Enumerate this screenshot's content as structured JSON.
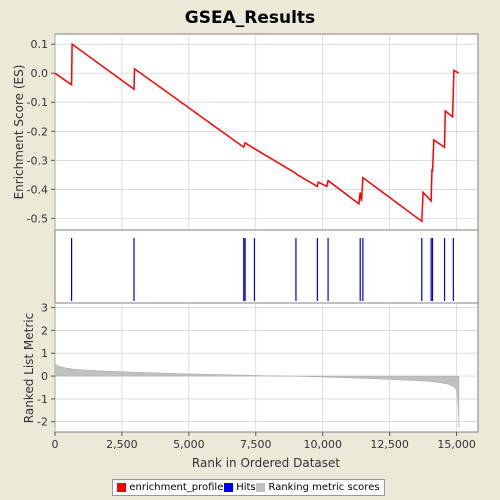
{
  "chart_data": {
    "type": "line",
    "title": "GSEA_Results",
    "xlabel": "Rank in Ordered Dataset",
    "xlim": [
      0,
      15800
    ],
    "x_ticks": [
      0,
      2500,
      5000,
      7500,
      10000,
      12500,
      15000
    ],
    "x_tick_labels": [
      "0",
      "2,500",
      "5,000",
      "7,500",
      "10,000",
      "12,500",
      "15,000"
    ],
    "es_panel": {
      "ylabel": "Enrichment Score (ES)",
      "ylim": [
        -0.54,
        0.135
      ],
      "y_ticks": [
        0.1,
        0.0,
        -0.1,
        -0.2,
        -0.3,
        -0.4,
        -0.5
      ],
      "y_tick_labels": [
        "0.1",
        "0.0",
        "-0.1",
        "-0.2",
        "-0.3",
        "-0.4",
        "-0.5"
      ],
      "grid": true,
      "series_color": "#ff0000",
      "points": [
        [
          0,
          0.0
        ],
        [
          620,
          -0.04
        ],
        [
          640,
          0.1
        ],
        [
          2950,
          -0.055
        ],
        [
          2970,
          0.015
        ],
        [
          7050,
          -0.255
        ],
        [
          7100,
          -0.24
        ],
        [
          7450,
          -0.26
        ],
        [
          9000,
          -0.345
        ],
        [
          9050,
          -0.35
        ],
        [
          9800,
          -0.39
        ],
        [
          9830,
          -0.375
        ],
        [
          10150,
          -0.39
        ],
        [
          10200,
          -0.37
        ],
        [
          11350,
          -0.45
        ],
        [
          11400,
          -0.41
        ],
        [
          11450,
          -0.44
        ],
        [
          11500,
          -0.36
        ],
        [
          13700,
          -0.51
        ],
        [
          13750,
          -0.41
        ],
        [
          14050,
          -0.44
        ],
        [
          14080,
          -0.33
        ],
        [
          14100,
          -0.34
        ],
        [
          14150,
          -0.23
        ],
        [
          14550,
          -0.255
        ],
        [
          14580,
          -0.13
        ],
        [
          14850,
          -0.15
        ],
        [
          14900,
          0.01
        ],
        [
          15080,
          0.0
        ]
      ]
    },
    "hits_panel": {
      "series_color": "#0000cc",
      "hits": [
        620,
        2950,
        7050,
        7100,
        7450,
        9000,
        9800,
        10200,
        11400,
        11500,
        13700,
        14050,
        14100,
        14550,
        14880
      ]
    },
    "rank_panel": {
      "ylabel": "Ranked List Metric",
      "ylim": [
        -2.45,
        3.2
      ],
      "y_ticks": [
        3,
        2,
        1,
        0,
        -1,
        -2
      ],
      "y_tick_labels": [
        "3",
        "2",
        "1",
        "0",
        "-1",
        "-2"
      ],
      "grid": true,
      "series_color": "#c0c0c0",
      "metric_profile": [
        [
          0,
          0.55
        ],
        [
          100,
          0.45
        ],
        [
          300,
          0.38
        ],
        [
          700,
          0.3
        ],
        [
          1500,
          0.24
        ],
        [
          2500,
          0.19
        ],
        [
          4000,
          0.13
        ],
        [
          5500,
          0.08
        ],
        [
          7000,
          0.04
        ],
        [
          8000,
          0.01
        ],
        [
          8800,
          0.0
        ],
        [
          9600,
          -0.03
        ],
        [
          10500,
          -0.06
        ],
        [
          11500,
          -0.1
        ],
        [
          12500,
          -0.15
        ],
        [
          13500,
          -0.2
        ],
        [
          14000,
          -0.24
        ],
        [
          14400,
          -0.29
        ],
        [
          14700,
          -0.36
        ],
        [
          14900,
          -0.48
        ],
        [
          15000,
          -0.62
        ],
        [
          15040,
          -1.0
        ],
        [
          15070,
          -1.7
        ],
        [
          15085,
          -2.25
        ]
      ]
    },
    "legend": {
      "placement": "bottom",
      "items": [
        {
          "label": "enrichment_profile",
          "color": "#ff0000"
        },
        {
          "label": "Hits",
          "color": "#0000ff"
        },
        {
          "label": "Ranking metric scores",
          "color": "#c0c0c0"
        }
      ]
    }
  }
}
